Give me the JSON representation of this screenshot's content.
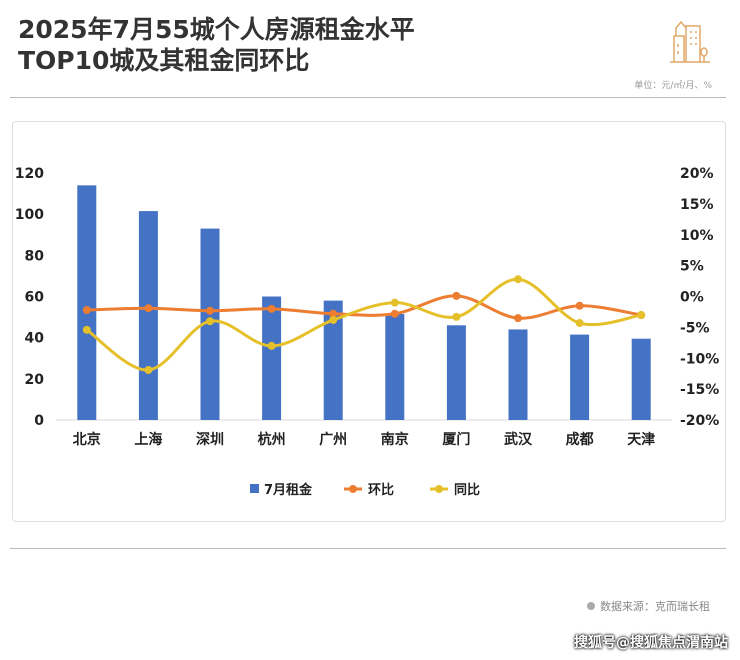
{
  "title_line1": "2025年7月55城个人房源租金水平",
  "title_line2": "TOP10城及其租金同环比",
  "unit": "单位：元/㎡/月、%",
  "source": "数据来源：克而瑞长租",
  "footer": "搜狐号@搜狐焦点渭南站",
  "colors": {
    "bar": "#4472C4",
    "mom": "#ED7D31",
    "yoy": "#E6C02A"
  },
  "chart_data": {
    "type": "bar+line",
    "categories": [
      "北京",
      "上海",
      "深圳",
      "杭州",
      "广州",
      "南京",
      "厦门",
      "武汉",
      "成都",
      "天津"
    ],
    "series": [
      {
        "name": "7月租金",
        "type": "bar",
        "axis": "left",
        "values": [
          114,
          101.5,
          93,
          60,
          58,
          51.5,
          46,
          44,
          41.5,
          39.5
        ]
      },
      {
        "name": "环比",
        "type": "line",
        "axis": "right",
        "values": [
          -2.2,
          -1.9,
          -2.3,
          -2.0,
          -2.8,
          -2.8,
          0.1,
          -3.5,
          -1.5,
          -3.0
        ]
      },
      {
        "name": "同比",
        "type": "line",
        "axis": "right",
        "values": [
          -5.4,
          -11.9,
          -4.0,
          -8.0,
          -3.8,
          -1.0,
          -3.3,
          2.8,
          -4.3,
          -3.0
        ]
      }
    ],
    "ylim": [
      0,
      120
    ],
    "yticks": [
      "0",
      "20",
      "40",
      "60",
      "80",
      "100",
      "120"
    ],
    "y2lim": [
      -20,
      20
    ],
    "y2ticks": [
      "-20%",
      "-15%",
      "-10%",
      "-5%",
      "0%",
      "5%",
      "10%",
      "15%",
      "20%"
    ],
    "legend": "bottom"
  }
}
